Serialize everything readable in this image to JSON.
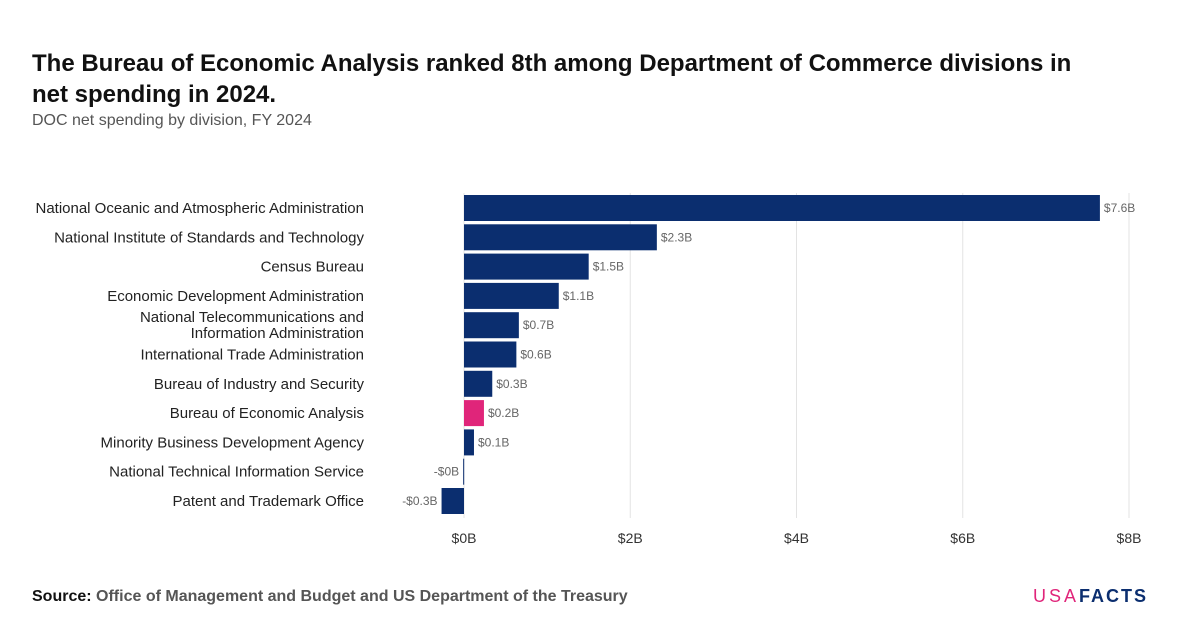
{
  "header": {
    "title": "The Bureau of Economic Analysis ranked 8th among Department of Commerce divisions in net spending in 2024.",
    "subtitle": "DOC net spending by division, FY 2024"
  },
  "footer": {
    "source_label": "Source:",
    "source_text": "Office of Management and Budget and US Department of the Treasury",
    "logo_usa": "USA",
    "logo_facts": "FACTS"
  },
  "colors": {
    "bar": "#0b2e6f",
    "highlight": "#e0257a",
    "grid": "#e3e3e3",
    "text": "#222222",
    "label": "#666666"
  },
  "chart_data": {
    "type": "bar",
    "orientation": "horizontal",
    "categories": [
      "National Oceanic and Atmospheric Administration",
      "National Institute of Standards and Technology",
      "Census Bureau",
      "Economic Development Administration",
      "National Telecommunications and Information Administration",
      "International Trade Administration",
      "Bureau of Industry and Security",
      "Bureau of Economic Analysis",
      "Minority Business Development Agency",
      "National Technical Information Service",
      "Patent and Trademark Office"
    ],
    "values": [
      7.65,
      2.32,
      1.5,
      1.14,
      0.66,
      0.63,
      0.34,
      0.24,
      0.12,
      -0.01,
      -0.27
    ],
    "value_labels": [
      "$7.6B",
      "$2.3B",
      "$1.5B",
      "$1.1B",
      "$0.7B",
      "$0.6B",
      "$0.3B",
      "$0.2B",
      "$0.1B",
      "-$0B",
      "-$0.3B"
    ],
    "highlight_category": "Bureau of Economic Analysis",
    "xlim": [
      0,
      8
    ],
    "xticks": [
      0,
      2,
      4,
      6,
      8
    ],
    "xtick_labels": [
      "$0B",
      "$2B",
      "$4B",
      "$6B",
      "$8B"
    ],
    "xlabel": "",
    "ylabel": "",
    "grid": true,
    "legend": "none"
  }
}
